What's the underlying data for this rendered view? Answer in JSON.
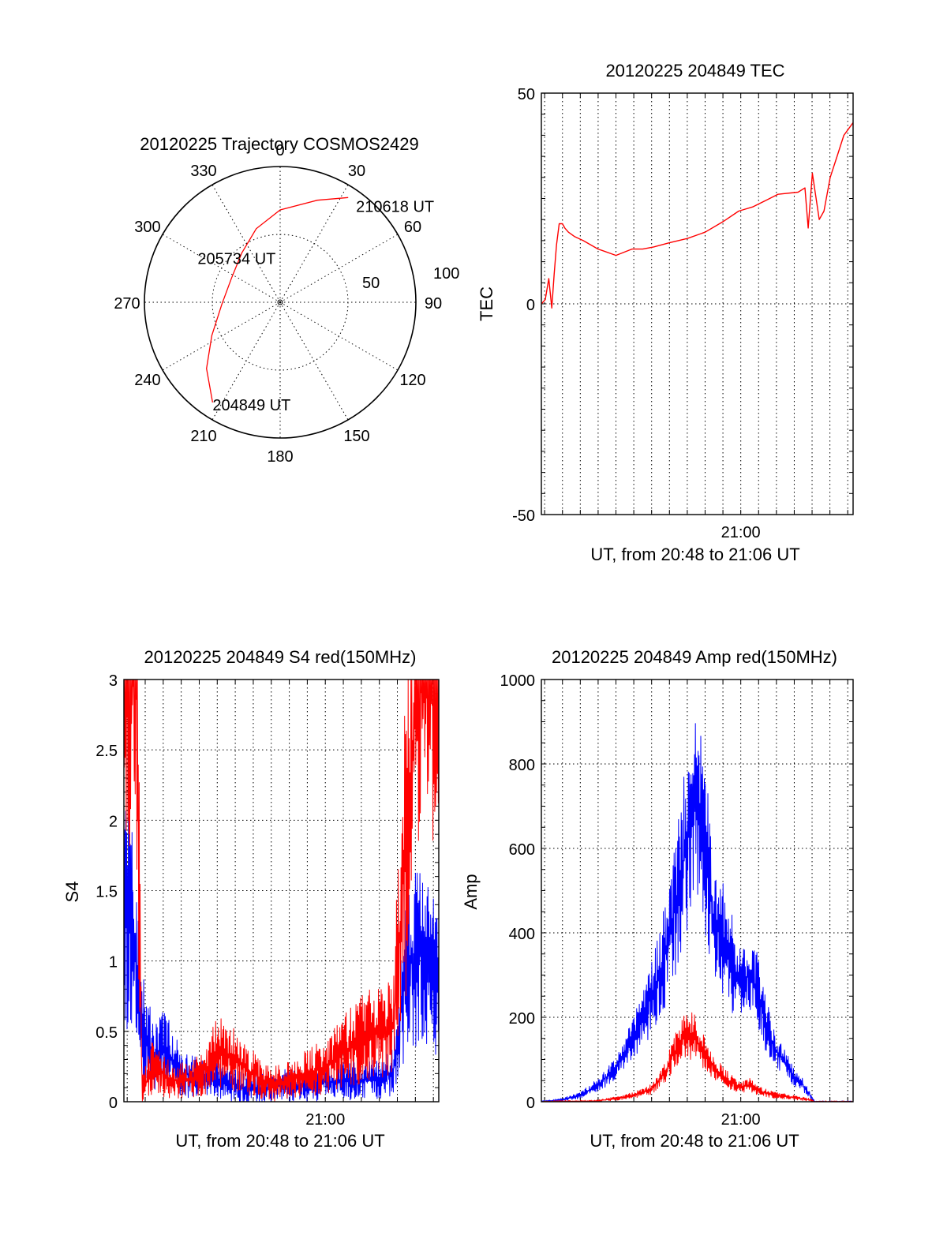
{
  "chart_data": [
    {
      "id": "polar",
      "type": "scatter",
      "title": "20120225 Trajectory COSMOS2429",
      "azimuth_labels": [
        "0",
        "30",
        "60",
        "90",
        "120",
        "150",
        "180",
        "210",
        "240",
        "270",
        "300",
        "330"
      ],
      "radial_labels": [
        "50",
        "100"
      ],
      "rlim": [
        0,
        100
      ],
      "track": {
        "color": "#ff0000",
        "points": [
          {
            "az": 214,
            "r": 89
          },
          {
            "az": 228,
            "r": 73
          },
          {
            "az": 244,
            "r": 56
          },
          {
            "az": 268,
            "r": 43
          },
          {
            "az": 296,
            "r": 40
          },
          {
            "az": 322,
            "r": 46
          },
          {
            "az": 342,
            "r": 57
          },
          {
            "az": 0,
            "r": 68
          },
          {
            "az": 20,
            "r": 80
          },
          {
            "az": 33,
            "r": 92
          }
        ]
      },
      "annotations": [
        {
          "text": "204849 UT",
          "az": 214,
          "r": 89
        },
        {
          "text": "205734 UT",
          "az": 300,
          "r": 40
        },
        {
          "text": "210618 UT",
          "az": 33,
          "r": 92
        }
      ]
    },
    {
      "id": "tec",
      "type": "line",
      "title": "20120225 204849 TEC",
      "xlabel": "UT, from 20:48 to 21:06 UT",
      "ylabel": "TEC",
      "xlim": [
        "20:48:49",
        "21:06:18"
      ],
      "ylim": [
        -50,
        50
      ],
      "yticks": [
        "-50",
        "0",
        "50"
      ],
      "xtick_label": "21:00",
      "series": [
        {
          "color": "#ff0000",
          "x": [
            "20:48:49",
            "20:49:02",
            "20:49:14",
            "20:49:24",
            "20:49:32",
            "20:49:40",
            "20:49:49",
            "20:50:00",
            "20:50:08",
            "20:50:20",
            "20:50:40",
            "20:51:10",
            "20:52:00",
            "20:53:00",
            "20:53:54",
            "20:54:30",
            "20:55:07",
            "20:56:00",
            "20:57:00",
            "20:58:00",
            "20:59:00",
            "20:59:53",
            "21:00:40",
            "21:01:23",
            "21:02:05",
            "21:03:13",
            "21:03:36",
            "21:03:47",
            "21:04:01",
            "21:04:24",
            "21:04:40",
            "21:05:01",
            "21:05:24",
            "21:05:47",
            "21:06:18"
          ],
          "values": [
            0,
            1,
            6,
            -1,
            7,
            14,
            19,
            19,
            18,
            17,
            16,
            15,
            13,
            11.5,
            13,
            13,
            13.5,
            14.5,
            15.5,
            17,
            19.5,
            22,
            23,
            24.5,
            26,
            26.5,
            27.5,
            18,
            31,
            20,
            22,
            30,
            35,
            40,
            43
          ]
        }
      ]
    },
    {
      "id": "s4",
      "type": "line",
      "title": "20120225 204849 S4 red(150MHz)",
      "xlabel": "UT, from 20:48 to 21:06 UT",
      "ylabel": "S4",
      "xlim": [
        "20:48:49",
        "21:06:18"
      ],
      "ylim": [
        0,
        3
      ],
      "yticks": [
        "0",
        "0.5",
        "1",
        "1.5",
        "2",
        "2.5",
        "3"
      ],
      "xtick_label": "21:00",
      "series": [
        {
          "color": "#0000ff",
          "x": [
            "20:48:49",
            "20:49:06",
            "20:49:25",
            "20:49:38",
            "20:49:48",
            "20:50:00",
            "20:50:30",
            "20:51:00",
            "20:52:00",
            "20:53:00",
            "20:54:00",
            "20:55:00",
            "20:56:00",
            "20:57:00",
            "20:58:00",
            "20:59:00",
            "21:00:00",
            "21:01:00",
            "21:02:00",
            "21:02:58",
            "21:03:48",
            "21:04:30",
            "21:05:10",
            "21:06:18"
          ],
          "values": [
            1.2,
            1.5,
            1.1,
            0.8,
            0.55,
            0.5,
            0.3,
            0.4,
            0.2,
            0.18,
            0.15,
            0.12,
            0.09,
            0.1,
            0.12,
            0.12,
            0.14,
            0.15,
            0.15,
            0.17,
            0.22,
            0.95,
            1.05,
            0.85
          ]
        },
        {
          "color": "#ff0000",
          "x": [
            "20:48:49",
            "20:49:10",
            "20:49:30",
            "20:49:49",
            "20:50:00",
            "20:50:30",
            "20:51:00",
            "20:51:30",
            "20:52:30",
            "20:53:30",
            "20:54:00",
            "20:55:00",
            "20:56:00",
            "20:57:00",
            "20:58:00",
            "20:59:00",
            "21:00:00",
            "21:01:00",
            "21:02:00",
            "21:02:58",
            "21:03:48",
            "21:04:30",
            "21:05:10",
            "21:06:18"
          ],
          "values": [
            3,
            3,
            3,
            0.1,
            0.12,
            0.3,
            0.2,
            0.15,
            0.15,
            0.25,
            0.35,
            0.3,
            0.2,
            0.12,
            0.15,
            0.2,
            0.25,
            0.35,
            0.45,
            0.5,
            0.55,
            2.0,
            3.0,
            3.0
          ]
        }
      ]
    },
    {
      "id": "amp",
      "type": "line",
      "title": "20120225 204849 Amp red(150MHz)",
      "xlabel": "UT, from 20:48 to 21:06 UT",
      "ylabel": "Amp",
      "xlim": [
        "20:48:49",
        "21:06:18"
      ],
      "ylim": [
        0,
        1000
      ],
      "yticks": [
        "0",
        "200",
        "400",
        "600",
        "800",
        "1000"
      ],
      "xtick_label": "21:00",
      "series": [
        {
          "color": "#0000ff",
          "x": [
            "20:48:49",
            "20:50:00",
            "20:51:00",
            "20:52:00",
            "20:53:00",
            "20:54:00",
            "20:55:00",
            "20:56:00",
            "20:56:30",
            "20:57:00",
            "20:57:30",
            "20:58:00",
            "20:58:30",
            "20:59:00",
            "20:59:30",
            "21:00:00",
            "21:00:30",
            "21:01:00",
            "21:01:30",
            "21:02:00",
            "21:02:30",
            "21:03:00",
            "21:03:30",
            "21:03:48",
            "21:04:10",
            "21:05:00",
            "21:06:18"
          ],
          "values": [
            0,
            5,
            15,
            40,
            80,
            150,
            250,
            380,
            500,
            620,
            700,
            600,
            430,
            390,
            330,
            270,
            310,
            250,
            170,
            120,
            90,
            60,
            40,
            20,
            0,
            0,
            0
          ]
        },
        {
          "color": "#ff0000",
          "x": [
            "20:48:49",
            "20:52:00",
            "20:53:00",
            "20:54:00",
            "20:55:00",
            "20:55:30",
            "20:56:00",
            "20:56:30",
            "20:57:00",
            "20:57:30",
            "20:58:00",
            "20:58:30",
            "20:59:00",
            "20:59:30",
            "21:00:00",
            "21:00:30",
            "21:01:00",
            "21:02:00",
            "21:03:00",
            "21:03:48",
            "21:04:10",
            "21:06:18"
          ],
          "values": [
            0,
            2,
            8,
            15,
            30,
            55,
            90,
            140,
            160,
            150,
            110,
            80,
            60,
            45,
            35,
            40,
            25,
            15,
            10,
            5,
            0,
            0
          ]
        }
      ]
    }
  ]
}
